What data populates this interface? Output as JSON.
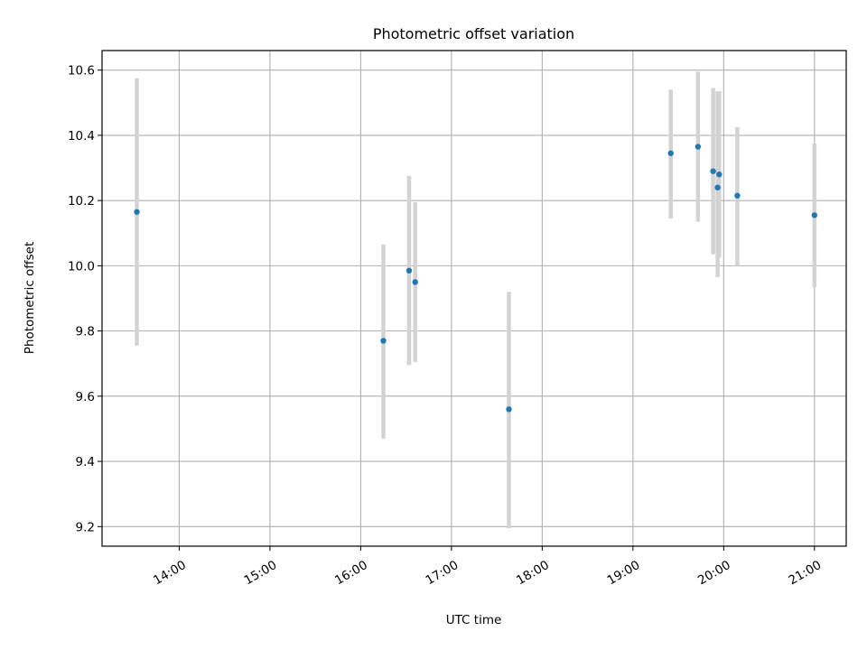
{
  "chart_data": {
    "type": "scatter",
    "title": "Photometric offset variation",
    "xlabel": "UTC time",
    "ylabel": "Photometric offset",
    "x_format": "HH:MM",
    "xlim": [
      "13:09",
      "21:21"
    ],
    "ylim": [
      9.14,
      10.66
    ],
    "xticks": [
      "14:00",
      "15:00",
      "16:00",
      "17:00",
      "18:00",
      "19:00",
      "20:00",
      "21:00"
    ],
    "yticks": [
      "9.2",
      "9.4",
      "9.6",
      "9.8",
      "10.0",
      "10.2",
      "10.4",
      "10.6"
    ],
    "grid": true,
    "legend": "none",
    "colors": {
      "point": "#1f77b4",
      "error_bar": "#d3d3d3"
    },
    "series": [
      {
        "points": [
          {
            "x": "13:32",
            "y": 10.165,
            "ylow": 9.755,
            "yhigh": 10.575
          },
          {
            "x": "16:15",
            "y": 9.77,
            "ylow": 9.47,
            "yhigh": 10.065
          },
          {
            "x": "16:32",
            "y": 9.985,
            "ylow": 9.695,
            "yhigh": 10.275
          },
          {
            "x": "16:36",
            "y": 9.95,
            "ylow": 9.705,
            "yhigh": 10.195
          },
          {
            "x": "17:38",
            "y": 9.56,
            "ylow": 9.195,
            "yhigh": 9.92
          },
          {
            "x": "19:25",
            "y": 10.345,
            "ylow": 10.145,
            "yhigh": 10.54
          },
          {
            "x": "19:43",
            "y": 10.365,
            "ylow": 10.135,
            "yhigh": 10.595
          },
          {
            "x": "19:53",
            "y": 10.29,
            "ylow": 10.035,
            "yhigh": 10.545
          },
          {
            "x": "19:56",
            "y": 10.24,
            "ylow": 9.965,
            "yhigh": 10.535
          },
          {
            "x": "19:57",
            "y": 10.28,
            "ylow": 10.025,
            "yhigh": 10.535
          },
          {
            "x": "20:09",
            "y": 10.215,
            "ylow": 10.0,
            "yhigh": 10.425
          },
          {
            "x": "21:00",
            "y": 10.155,
            "ylow": 9.935,
            "yhigh": 10.375
          }
        ]
      }
    ]
  }
}
